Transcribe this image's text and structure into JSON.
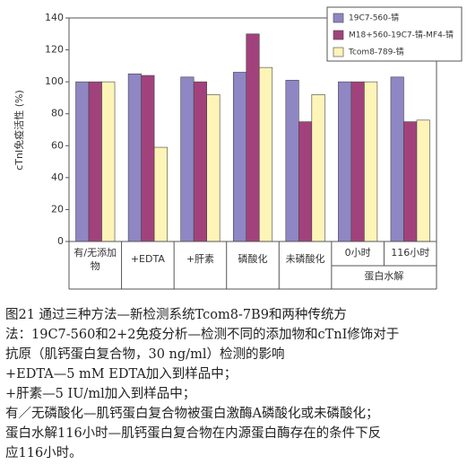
{
  "chart_data": {
    "type": "bar",
    "y_label": "cTnI免疫活性 (%)",
    "categories": [
      "有/无添加物",
      "+EDTA",
      "+肝素",
      "磷酸化",
      "未磷酸化",
      "0小时",
      "116小时"
    ],
    "group_label": "蛋白水解",
    "series": [
      {
        "name": "19C7-560-锖",
        "color": "#8f86c4",
        "values": [
          100,
          105,
          103,
          106,
          101,
          100,
          103
        ]
      },
      {
        "name": "M18+560-19C7-锖-MF4-锖",
        "color": "#a2427c",
        "values": [
          100,
          104,
          100,
          130,
          75,
          100,
          75
        ]
      },
      {
        "name": "Tcom8-789-锖",
        "color": "#fdf4b8",
        "values": [
          100,
          59,
          92,
          109,
          92,
          100,
          76
        ]
      }
    ],
    "ylim": [
      0,
      140
    ],
    "yticks": [
      0,
      20,
      40,
      60,
      80,
      100,
      120,
      140
    ]
  },
  "caption": [
    "图21 通过三种方法—新检测系统Tcom8-7B9和两种传统方",
    "法：19C7-560和2+2免疫分析—检测不同的添加物和cTnI修饰对于",
    "抗原（肌钙蛋白复合物，30 ng/ml）检测的影响",
    "+EDTA—5 mM EDTA加入到样品中；",
    "+肝素—5 IU/ml加入到样品中；",
    "有／无磷酸化—肌钙蛋白复合物被蛋白激酶A磷酸化或未磷酸化；",
    "蛋白水解116小时—肌钙蛋白复合物在内源蛋白酶存在的条件下反",
    "应116小时。"
  ]
}
